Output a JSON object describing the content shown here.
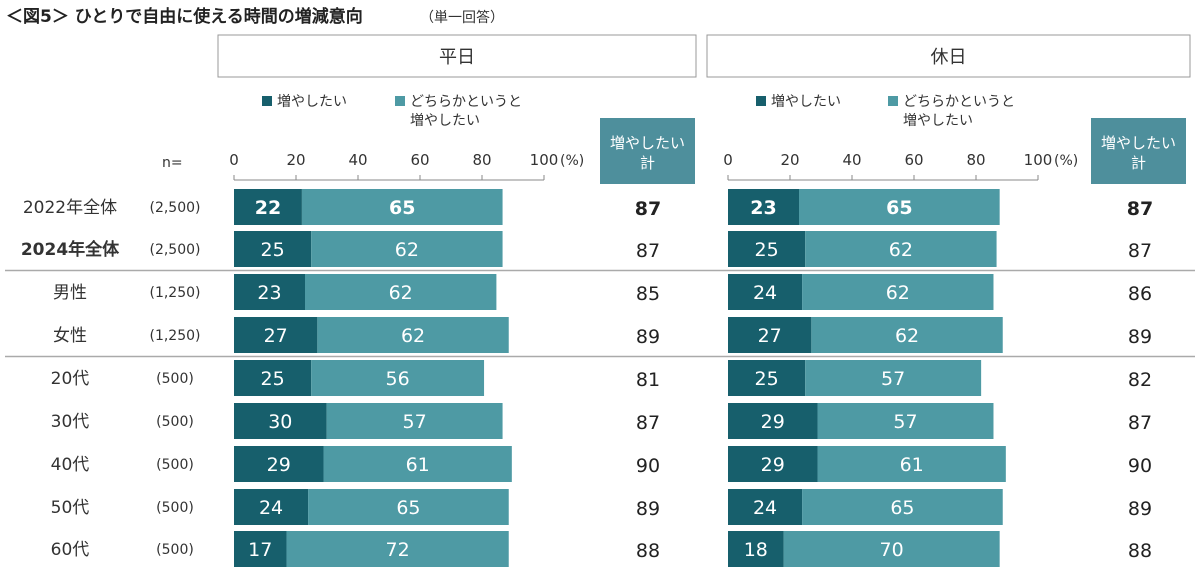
{
  "title": "＜図5＞ ひとりで自由に使える時間の増減意向",
  "subtitle": "（単一回答）",
  "n_label": "n=",
  "colors": {
    "dark": "#175f6c",
    "light": "#4e9aa4",
    "total_header_bg": "#4e8f9c",
    "panel_border": "#999999"
  },
  "chart_data": {
    "type": "stacked-bar",
    "categories": [
      "2022年全体",
      "2024年全体",
      "男性",
      "女性",
      "20代",
      "30代",
      "40代",
      "50代",
      "60代"
    ],
    "sample_sizes": [
      "(2,500)",
      "(2,500)",
      "(1,250)",
      "(1,250)",
      "(500)",
      "(500)",
      "(500)",
      "(500)",
      "(500)"
    ],
    "bold_category_index": 1,
    "bold_value_row_index": 0,
    "xlim": [
      0,
      100
    ],
    "x_ticks": [
      "0",
      "20",
      "40",
      "60",
      "80",
      "100"
    ],
    "x_unit": "(%)",
    "legend": [
      "増やしたい",
      "どちらかというと\n増やしたい"
    ],
    "total_header": "増やしたい\n計",
    "group_separators_after": [
      1,
      3
    ],
    "panels": [
      {
        "title": "平日",
        "series": [
          {
            "name": "増やしたい",
            "values": [
              22,
              25,
              23,
              27,
              25,
              30,
              29,
              24,
              17
            ]
          },
          {
            "name": "どちらかというと増やしたい",
            "values": [
              65,
              62,
              62,
              62,
              56,
              57,
              61,
              65,
              72
            ]
          }
        ],
        "totals": [
          87,
          87,
          85,
          89,
          81,
          87,
          90,
          89,
          88
        ]
      },
      {
        "title": "休日",
        "series": [
          {
            "name": "増やしたい",
            "values": [
              23,
              25,
              24,
              27,
              25,
              29,
              29,
              24,
              18
            ]
          },
          {
            "name": "どちらかというと増やしたい",
            "values": [
              65,
              62,
              62,
              62,
              57,
              57,
              61,
              65,
              70
            ]
          }
        ],
        "totals": [
          87,
          87,
          86,
          89,
          82,
          87,
          90,
          89,
          88
        ]
      }
    ]
  }
}
